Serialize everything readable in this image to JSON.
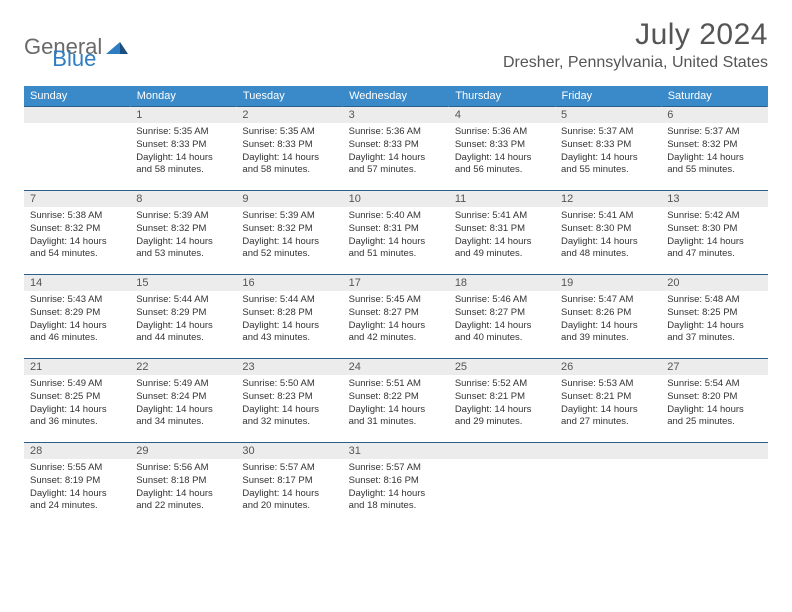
{
  "header": {
    "logo_part1": "General",
    "logo_part2": "Blue",
    "month_title": "July 2024",
    "location": "Dresher, Pennsylvania, United States"
  },
  "colors": {
    "header_bg": "#3a8ac9",
    "header_text": "#ffffff",
    "daynum_bg": "#ececec",
    "rule": "#2b5f8a",
    "logo_gray": "#6a6a6a",
    "logo_blue": "#2e7cc1"
  },
  "day_headers": [
    "Sunday",
    "Monday",
    "Tuesday",
    "Wednesday",
    "Thursday",
    "Friday",
    "Saturday"
  ],
  "weeks": [
    [
      null,
      {
        "n": "1",
        "sr": "Sunrise: 5:35 AM",
        "ss": "Sunset: 8:33 PM",
        "dl": "Daylight: 14 hours and 58 minutes."
      },
      {
        "n": "2",
        "sr": "Sunrise: 5:35 AM",
        "ss": "Sunset: 8:33 PM",
        "dl": "Daylight: 14 hours and 58 minutes."
      },
      {
        "n": "3",
        "sr": "Sunrise: 5:36 AM",
        "ss": "Sunset: 8:33 PM",
        "dl": "Daylight: 14 hours and 57 minutes."
      },
      {
        "n": "4",
        "sr": "Sunrise: 5:36 AM",
        "ss": "Sunset: 8:33 PM",
        "dl": "Daylight: 14 hours and 56 minutes."
      },
      {
        "n": "5",
        "sr": "Sunrise: 5:37 AM",
        "ss": "Sunset: 8:33 PM",
        "dl": "Daylight: 14 hours and 55 minutes."
      },
      {
        "n": "6",
        "sr": "Sunrise: 5:37 AM",
        "ss": "Sunset: 8:32 PM",
        "dl": "Daylight: 14 hours and 55 minutes."
      }
    ],
    [
      {
        "n": "7",
        "sr": "Sunrise: 5:38 AM",
        "ss": "Sunset: 8:32 PM",
        "dl": "Daylight: 14 hours and 54 minutes."
      },
      {
        "n": "8",
        "sr": "Sunrise: 5:39 AM",
        "ss": "Sunset: 8:32 PM",
        "dl": "Daylight: 14 hours and 53 minutes."
      },
      {
        "n": "9",
        "sr": "Sunrise: 5:39 AM",
        "ss": "Sunset: 8:32 PM",
        "dl": "Daylight: 14 hours and 52 minutes."
      },
      {
        "n": "10",
        "sr": "Sunrise: 5:40 AM",
        "ss": "Sunset: 8:31 PM",
        "dl": "Daylight: 14 hours and 51 minutes."
      },
      {
        "n": "11",
        "sr": "Sunrise: 5:41 AM",
        "ss": "Sunset: 8:31 PM",
        "dl": "Daylight: 14 hours and 49 minutes."
      },
      {
        "n": "12",
        "sr": "Sunrise: 5:41 AM",
        "ss": "Sunset: 8:30 PM",
        "dl": "Daylight: 14 hours and 48 minutes."
      },
      {
        "n": "13",
        "sr": "Sunrise: 5:42 AM",
        "ss": "Sunset: 8:30 PM",
        "dl": "Daylight: 14 hours and 47 minutes."
      }
    ],
    [
      {
        "n": "14",
        "sr": "Sunrise: 5:43 AM",
        "ss": "Sunset: 8:29 PM",
        "dl": "Daylight: 14 hours and 46 minutes."
      },
      {
        "n": "15",
        "sr": "Sunrise: 5:44 AM",
        "ss": "Sunset: 8:29 PM",
        "dl": "Daylight: 14 hours and 44 minutes."
      },
      {
        "n": "16",
        "sr": "Sunrise: 5:44 AM",
        "ss": "Sunset: 8:28 PM",
        "dl": "Daylight: 14 hours and 43 minutes."
      },
      {
        "n": "17",
        "sr": "Sunrise: 5:45 AM",
        "ss": "Sunset: 8:27 PM",
        "dl": "Daylight: 14 hours and 42 minutes."
      },
      {
        "n": "18",
        "sr": "Sunrise: 5:46 AM",
        "ss": "Sunset: 8:27 PM",
        "dl": "Daylight: 14 hours and 40 minutes."
      },
      {
        "n": "19",
        "sr": "Sunrise: 5:47 AM",
        "ss": "Sunset: 8:26 PM",
        "dl": "Daylight: 14 hours and 39 minutes."
      },
      {
        "n": "20",
        "sr": "Sunrise: 5:48 AM",
        "ss": "Sunset: 8:25 PM",
        "dl": "Daylight: 14 hours and 37 minutes."
      }
    ],
    [
      {
        "n": "21",
        "sr": "Sunrise: 5:49 AM",
        "ss": "Sunset: 8:25 PM",
        "dl": "Daylight: 14 hours and 36 minutes."
      },
      {
        "n": "22",
        "sr": "Sunrise: 5:49 AM",
        "ss": "Sunset: 8:24 PM",
        "dl": "Daylight: 14 hours and 34 minutes."
      },
      {
        "n": "23",
        "sr": "Sunrise: 5:50 AM",
        "ss": "Sunset: 8:23 PM",
        "dl": "Daylight: 14 hours and 32 minutes."
      },
      {
        "n": "24",
        "sr": "Sunrise: 5:51 AM",
        "ss": "Sunset: 8:22 PM",
        "dl": "Daylight: 14 hours and 31 minutes."
      },
      {
        "n": "25",
        "sr": "Sunrise: 5:52 AM",
        "ss": "Sunset: 8:21 PM",
        "dl": "Daylight: 14 hours and 29 minutes."
      },
      {
        "n": "26",
        "sr": "Sunrise: 5:53 AM",
        "ss": "Sunset: 8:21 PM",
        "dl": "Daylight: 14 hours and 27 minutes."
      },
      {
        "n": "27",
        "sr": "Sunrise: 5:54 AM",
        "ss": "Sunset: 8:20 PM",
        "dl": "Daylight: 14 hours and 25 minutes."
      }
    ],
    [
      {
        "n": "28",
        "sr": "Sunrise: 5:55 AM",
        "ss": "Sunset: 8:19 PM",
        "dl": "Daylight: 14 hours and 24 minutes."
      },
      {
        "n": "29",
        "sr": "Sunrise: 5:56 AM",
        "ss": "Sunset: 8:18 PM",
        "dl": "Daylight: 14 hours and 22 minutes."
      },
      {
        "n": "30",
        "sr": "Sunrise: 5:57 AM",
        "ss": "Sunset: 8:17 PM",
        "dl": "Daylight: 14 hours and 20 minutes."
      },
      {
        "n": "31",
        "sr": "Sunrise: 5:57 AM",
        "ss": "Sunset: 8:16 PM",
        "dl": "Daylight: 14 hours and 18 minutes."
      },
      null,
      null,
      null
    ]
  ]
}
